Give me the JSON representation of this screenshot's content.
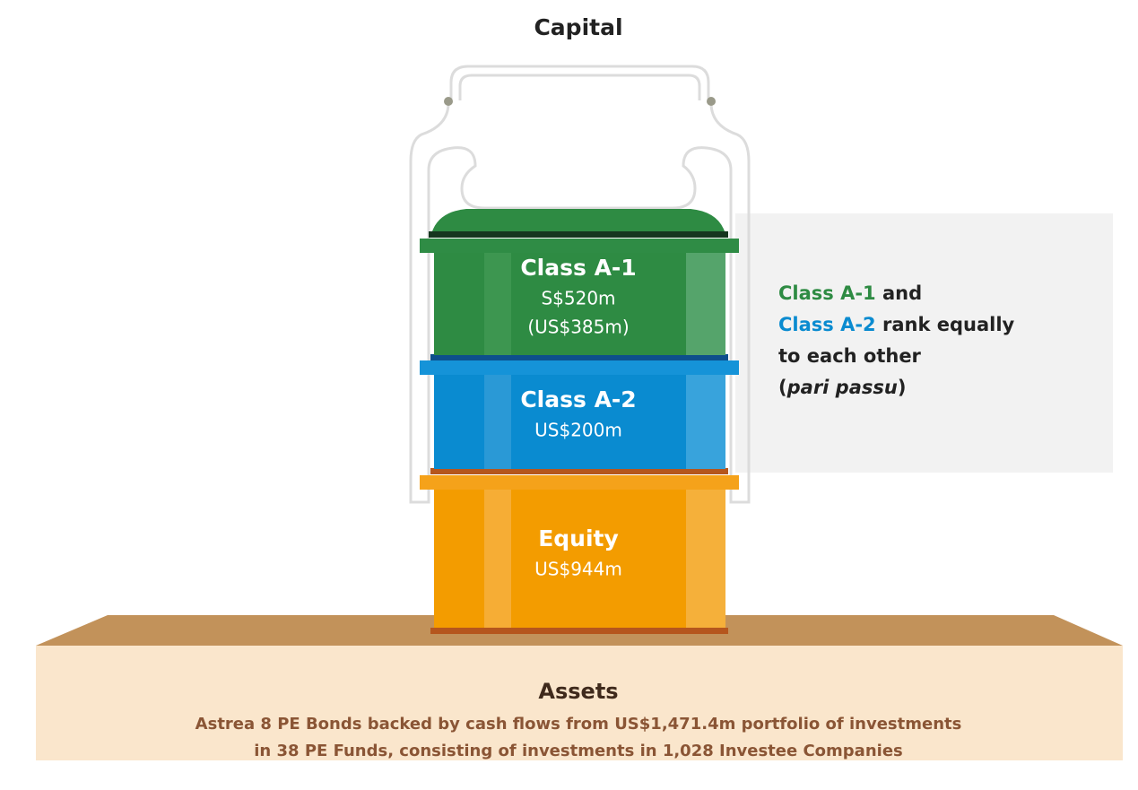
{
  "title": "Capital",
  "tiers": [
    {
      "name": "Class A-1",
      "lines": [
        "S$520m",
        "(US$385m)"
      ]
    },
    {
      "name": "Class A-2",
      "lines": [
        "US$200m"
      ]
    },
    {
      "name": "Equity",
      "lines": [
        "US$944m"
      ]
    }
  ],
  "note": {
    "lines": [
      [
        {
          "text": "Class A-1",
          "color": "#2e8b43"
        },
        {
          "text": " and"
        }
      ],
      [
        {
          "text": "Class A-2",
          "color": "#0a8bd0"
        },
        {
          "text": " rank equally"
        }
      ],
      [
        {
          "text": "to each other"
        }
      ],
      [
        {
          "text": "("
        },
        {
          "text": "pari passu",
          "italic": true
        },
        {
          "text": ")"
        }
      ]
    ]
  },
  "base": {
    "title": "Assets",
    "lines": [
      "Astrea 8 PE Bonds backed by cash flows from US$1,471.4m portfolio of investments",
      "in 38 PE Funds, consisting of investments in 1,028 Investee Companies"
    ]
  }
}
